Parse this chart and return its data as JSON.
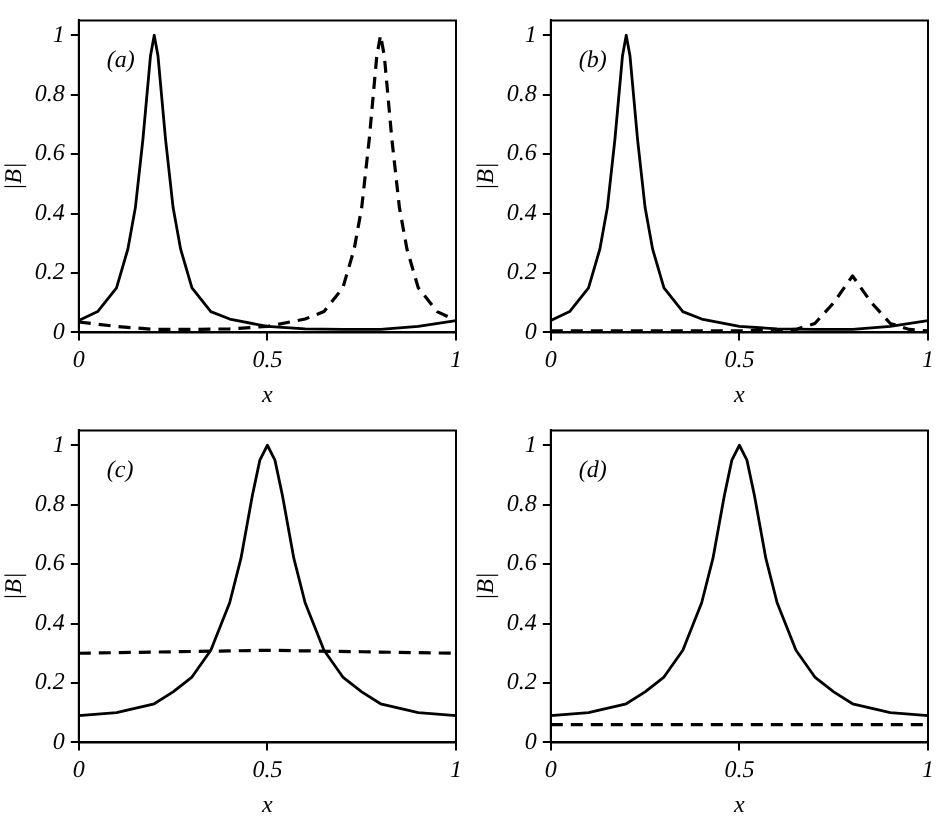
{
  "chart_data": [
    {
      "type": "line",
      "xlabel": "x",
      "ylabel": "|B|",
      "annotations": [
        "(a)"
      ],
      "xlim": [
        0,
        1
      ],
      "ylim": [
        0,
        1.05
      ],
      "xticks": [
        0,
        0.5,
        1
      ],
      "yticks": [
        0,
        0.2,
        0.4,
        0.6,
        0.8,
        1
      ],
      "grid": false,
      "legend": false,
      "marker": "none",
      "series": [
        {
          "color": "#000000",
          "line_style": "solid",
          "x": [
            0,
            0.05,
            0.1,
            0.13,
            0.15,
            0.17,
            0.19,
            0.2,
            0.21,
            0.23,
            0.25,
            0.27,
            0.3,
            0.35,
            0.4,
            0.5,
            0.6,
            0.7,
            0.8,
            0.9,
            1
          ],
          "values": [
            0.04,
            0.07,
            0.15,
            0.28,
            0.42,
            0.65,
            0.93,
            1,
            0.93,
            0.65,
            0.42,
            0.28,
            0.15,
            0.07,
            0.045,
            0.02,
            0.012,
            0.01,
            0.01,
            0.02,
            0.04
          ]
        },
        {
          "color": "#000000",
          "line_style": "dashed",
          "x": [
            0,
            0.1,
            0.2,
            0.3,
            0.4,
            0.5,
            0.6,
            0.65,
            0.7,
            0.73,
            0.75,
            0.77,
            0.79,
            0.8,
            0.81,
            0.83,
            0.85,
            0.87,
            0.9,
            0.95,
            1
          ],
          "values": [
            0.035,
            0.02,
            0.01,
            0.01,
            0.012,
            0.02,
            0.045,
            0.07,
            0.15,
            0.28,
            0.42,
            0.65,
            0.93,
            1,
            0.93,
            0.65,
            0.42,
            0.28,
            0.15,
            0.07,
            0.04
          ]
        }
      ]
    },
    {
      "type": "line",
      "xlabel": "x",
      "ylabel": "|B|",
      "annotations": [
        "(b)"
      ],
      "xlim": [
        0,
        1
      ],
      "ylim": [
        0,
        1.05
      ],
      "xticks": [
        0,
        0.5,
        1
      ],
      "yticks": [
        0,
        0.2,
        0.4,
        0.6,
        0.8,
        1
      ],
      "grid": false,
      "legend": false,
      "marker": "none",
      "series": [
        {
          "color": "#000000",
          "line_style": "solid",
          "x": [
            0,
            0.05,
            0.1,
            0.13,
            0.15,
            0.17,
            0.19,
            0.2,
            0.21,
            0.23,
            0.25,
            0.27,
            0.3,
            0.35,
            0.4,
            0.5,
            0.6,
            0.7,
            0.8,
            0.9,
            1
          ],
          "values": [
            0.04,
            0.07,
            0.15,
            0.28,
            0.42,
            0.65,
            0.93,
            1,
            0.93,
            0.65,
            0.42,
            0.28,
            0.15,
            0.07,
            0.045,
            0.02,
            0.012,
            0.01,
            0.01,
            0.02,
            0.04
          ]
        },
        {
          "color": "#000000",
          "line_style": "dashed",
          "x": [
            0,
            0.5,
            0.65,
            0.7,
            0.75,
            0.8,
            0.85,
            0.9,
            0.95,
            1
          ],
          "values": [
            0.005,
            0.005,
            0.01,
            0.03,
            0.1,
            0.19,
            0.1,
            0.03,
            0.01,
            0.005
          ]
        }
      ]
    },
    {
      "type": "line",
      "xlabel": "x",
      "ylabel": "|B|",
      "annotations": [
        "(c)"
      ],
      "xlim": [
        0,
        1
      ],
      "ylim": [
        0,
        1.05
      ],
      "xticks": [
        0,
        0.5,
        1
      ],
      "yticks": [
        0,
        0.2,
        0.4,
        0.6,
        0.8,
        1
      ],
      "grid": false,
      "legend": false,
      "marker": "none",
      "series": [
        {
          "color": "#000000",
          "line_style": "solid",
          "x": [
            0,
            0.1,
            0.2,
            0.25,
            0.3,
            0.35,
            0.4,
            0.43,
            0.46,
            0.48,
            0.5,
            0.52,
            0.54,
            0.57,
            0.6,
            0.65,
            0.7,
            0.75,
            0.8,
            0.9,
            1
          ],
          "values": [
            0.09,
            0.1,
            0.13,
            0.17,
            0.22,
            0.31,
            0.47,
            0.62,
            0.83,
            0.95,
            1,
            0.95,
            0.83,
            0.62,
            0.47,
            0.31,
            0.22,
            0.17,
            0.13,
            0.1,
            0.09
          ]
        },
        {
          "color": "#000000",
          "line_style": "dashed",
          "x": [
            0,
            0.25,
            0.5,
            0.75,
            1
          ],
          "values": [
            0.3,
            0.305,
            0.31,
            0.305,
            0.3
          ]
        }
      ]
    },
    {
      "type": "line",
      "xlabel": "x",
      "ylabel": "|B|",
      "annotations": [
        "(d)"
      ],
      "xlim": [
        0,
        1
      ],
      "ylim": [
        0,
        1.05
      ],
      "xticks": [
        0,
        0.5,
        1
      ],
      "yticks": [
        0,
        0.2,
        0.4,
        0.6,
        0.8,
        1
      ],
      "grid": false,
      "legend": false,
      "marker": "none",
      "series": [
        {
          "color": "#000000",
          "line_style": "solid",
          "x": [
            0,
            0.1,
            0.2,
            0.25,
            0.3,
            0.35,
            0.4,
            0.43,
            0.46,
            0.48,
            0.5,
            0.52,
            0.54,
            0.57,
            0.6,
            0.65,
            0.7,
            0.75,
            0.8,
            0.9,
            1
          ],
          "values": [
            0.09,
            0.1,
            0.13,
            0.17,
            0.22,
            0.31,
            0.47,
            0.62,
            0.83,
            0.95,
            1,
            0.95,
            0.83,
            0.62,
            0.47,
            0.31,
            0.22,
            0.17,
            0.13,
            0.1,
            0.09
          ]
        },
        {
          "color": "#000000",
          "line_style": "dashed",
          "x": [
            0,
            0.5,
            1
          ],
          "values": [
            0.06,
            0.06,
            0.06
          ]
        }
      ]
    }
  ]
}
